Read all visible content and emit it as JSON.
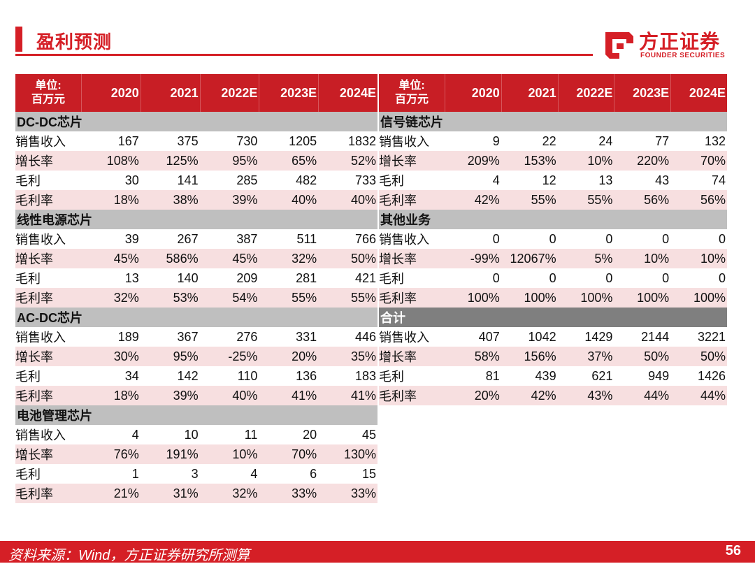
{
  "header": {
    "title": "盈利预测"
  },
  "logo": {
    "cn": "方正证券",
    "en": "FOUNDER SECURITIES"
  },
  "columns": {
    "unit": [
      "单位:",
      "百万元"
    ],
    "years": [
      "2020",
      "2021",
      "2022E",
      "2023E",
      "2024E"
    ]
  },
  "left_sections": [
    {
      "name": "DC-DC芯片",
      "rows": [
        {
          "label": "销售收入",
          "values": [
            "167",
            "375",
            "730",
            "1205",
            "1832"
          ]
        },
        {
          "label": "增长率",
          "values": [
            "108%",
            "125%",
            "95%",
            "65%",
            "52%"
          ]
        },
        {
          "label": "毛利",
          "values": [
            "30",
            "141",
            "285",
            "482",
            "733"
          ]
        },
        {
          "label": "毛利率",
          "values": [
            "18%",
            "38%",
            "39%",
            "40%",
            "40%"
          ]
        }
      ]
    },
    {
      "name": "线性电源芯片",
      "rows": [
        {
          "label": "销售收入",
          "values": [
            "39",
            "267",
            "387",
            "511",
            "766"
          ]
        },
        {
          "label": "增长率",
          "values": [
            "45%",
            "586%",
            "45%",
            "32%",
            "50%"
          ]
        },
        {
          "label": "毛利",
          "values": [
            "13",
            "140",
            "209",
            "281",
            "421"
          ]
        },
        {
          "label": "毛利率",
          "values": [
            "32%",
            "53%",
            "54%",
            "55%",
            "55%"
          ]
        }
      ]
    },
    {
      "name": "AC-DC芯片",
      "rows": [
        {
          "label": "销售收入",
          "values": [
            "189",
            "367",
            "276",
            "331",
            "446"
          ]
        },
        {
          "label": "增长率",
          "values": [
            "30%",
            "95%",
            "-25%",
            "20%",
            "35%"
          ]
        },
        {
          "label": "毛利",
          "values": [
            "34",
            "142",
            "110",
            "136",
            "183"
          ]
        },
        {
          "label": "毛利率",
          "values": [
            "18%",
            "39%",
            "40%",
            "41%",
            "41%"
          ]
        }
      ]
    },
    {
      "name": "电池管理芯片",
      "rows": [
        {
          "label": "销售收入",
          "values": [
            "4",
            "10",
            "11",
            "20",
            "45"
          ]
        },
        {
          "label": "增长率",
          "values": [
            "76%",
            "191%",
            "10%",
            "70%",
            "130%"
          ]
        },
        {
          "label": "毛利",
          "values": [
            "1",
            "3",
            "4",
            "6",
            "15"
          ]
        },
        {
          "label": "毛利率",
          "values": [
            "21%",
            "31%",
            "32%",
            "33%",
            "33%"
          ]
        }
      ]
    }
  ],
  "right_sections": [
    {
      "name": "信号链芯片",
      "rows": [
        {
          "label": "销售收入",
          "values": [
            "9",
            "22",
            "24",
            "77",
            "132"
          ]
        },
        {
          "label": "增长率",
          "values": [
            "209%",
            "153%",
            "10%",
            "220%",
            "70%"
          ]
        },
        {
          "label": "毛利",
          "values": [
            "4",
            "12",
            "13",
            "43",
            "74"
          ]
        },
        {
          "label": "毛利率",
          "values": [
            "42%",
            "55%",
            "55%",
            "56%",
            "56%"
          ]
        }
      ]
    },
    {
      "name": "其他业务",
      "rows": [
        {
          "label": "销售收入",
          "values": [
            "0",
            "0",
            "0",
            "0",
            "0"
          ]
        },
        {
          "label": "增长率",
          "values": [
            "-99%",
            "12067%",
            "5%",
            "10%",
            "10%"
          ]
        },
        {
          "label": "毛利",
          "values": [
            "0",
            "0",
            "0",
            "0",
            "0"
          ]
        },
        {
          "label": "毛利率",
          "values": [
            "100%",
            "100%",
            "100%",
            "100%",
            "100%"
          ]
        }
      ]
    },
    {
      "name": "合计",
      "dark": true,
      "rows": [
        {
          "label": "销售收入",
          "values": [
            "407",
            "1042",
            "1429",
            "2144",
            "3221"
          ]
        },
        {
          "label": "增长率",
          "values": [
            "58%",
            "156%",
            "37%",
            "50%",
            "50%"
          ]
        },
        {
          "label": "毛利",
          "values": [
            "81",
            "439",
            "621",
            "949",
            "1426"
          ]
        },
        {
          "label": "毛利率",
          "values": [
            "20%",
            "42%",
            "43%",
            "44%",
            "44%"
          ]
        }
      ]
    }
  ],
  "footer": {
    "source": "资料来源：Wind，方正证券研究所测算",
    "page": "56"
  },
  "colors": {
    "brand_red": "#d51f26",
    "header_red": "#c81e25",
    "section_gray": "#bfbfbf",
    "total_gray": "#7f7f7f",
    "alt_row": "#f7dfe0"
  }
}
